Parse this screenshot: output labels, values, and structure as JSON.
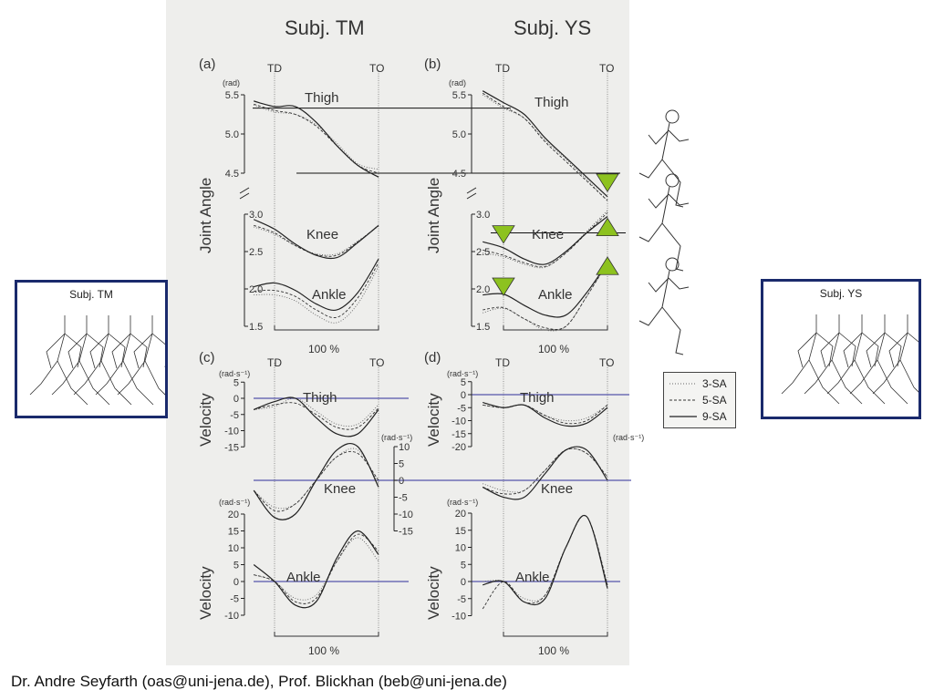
{
  "slide": {
    "footer": "Dr. Andre Seyfarth (oas@uni-jena.de), Prof. Blickhan (beb@uni-jena.de)"
  },
  "figure": {
    "subject_left": "Subj. TM",
    "subject_right": "Subj. YS",
    "panels": {
      "a": "(a)",
      "b": "(b)",
      "c": "(c)",
      "d": "(d)"
    },
    "td": "TD",
    "to": "TO",
    "stance_scale": "100 %",
    "angle_unit": "(rad)",
    "velocity_unit": "(rad·s⁻¹)",
    "angle_ylabel": "Joint Angle",
    "velocity_ylabel": "Velocity",
    "segments": {
      "thigh": "Thigh",
      "knee": "Knee",
      "ankle": "Ankle"
    }
  },
  "side_boxes": {
    "left_title": "Subj. TM",
    "right_title": "Subj. YS",
    "border_color": "#1a2a6c"
  },
  "legend": {
    "items": [
      {
        "label": "3-SA",
        "style": "dotted"
      },
      {
        "label": "5-SA",
        "style": "dashed"
      },
      {
        "label": "9-SA",
        "style": "solid"
      }
    ]
  },
  "colors": {
    "reference_line_angle": "#111111",
    "reference_line_velocity": "#5555aa",
    "marker": "#8dc21f"
  },
  "chart_data": {
    "type": "line",
    "x_unit": "% stance (TD = 0, TO = 100)",
    "x": [
      -20,
      0,
      20,
      40,
      60,
      80,
      100
    ],
    "series_names": [
      "3-SA",
      "5-SA",
      "9-SA"
    ],
    "subplots": [
      {
        "panel": "a",
        "subject": "Subj. TM",
        "quantity": "angle",
        "segment": "Thigh",
        "yticks": [
          "5.5",
          "5.0",
          "4.5"
        ],
        "series": [
          [
            5.37,
            5.28,
            5.25,
            5.12,
            4.88,
            4.62,
            4.55
          ],
          [
            5.38,
            5.3,
            5.25,
            5.1,
            4.85,
            4.6,
            4.5
          ],
          [
            5.42,
            5.35,
            5.35,
            5.15,
            4.85,
            4.6,
            4.45
          ]
        ]
      },
      {
        "panel": "a",
        "subject": "Subj. TM",
        "quantity": "angle",
        "segment": "Knee",
        "yticks": [
          "3.0",
          "2.5",
          "2.0",
          "1.5"
        ],
        "series": [
          [
            2.83,
            2.73,
            2.58,
            2.47,
            2.47,
            2.64,
            2.84
          ],
          [
            2.85,
            2.75,
            2.58,
            2.46,
            2.45,
            2.63,
            2.85
          ],
          [
            2.93,
            2.8,
            2.6,
            2.45,
            2.42,
            2.62,
            2.85
          ]
        ]
      },
      {
        "panel": "a",
        "subject": "Subj. TM",
        "quantity": "angle",
        "segment": "Ankle",
        "series": [
          [
            1.92,
            1.92,
            1.84,
            1.65,
            1.55,
            1.8,
            2.3
          ],
          [
            1.97,
            1.98,
            1.9,
            1.72,
            1.62,
            1.88,
            2.35
          ],
          [
            2.03,
            2.08,
            1.98,
            1.8,
            1.72,
            1.95,
            2.4
          ]
        ]
      },
      {
        "panel": "b",
        "subject": "Subj. YS",
        "quantity": "angle",
        "segment": "Thigh",
        "yticks": [
          "5.5",
          "5.0",
          "4.5"
        ],
        "series": [
          [
            5.5,
            5.33,
            5.2,
            4.92,
            4.68,
            4.42,
            4.15
          ],
          [
            5.52,
            5.35,
            5.2,
            4.9,
            4.65,
            4.4,
            4.15
          ],
          [
            5.55,
            5.4,
            5.25,
            4.95,
            4.7,
            4.45,
            4.2
          ]
        ]
      },
      {
        "panel": "b",
        "subject": "Subj. YS",
        "quantity": "angle",
        "segment": "Knee",
        "yticks": [
          "3.0",
          "2.5",
          "2.0",
          "1.5"
        ],
        "series": [
          [
            2.48,
            2.43,
            2.33,
            2.29,
            2.48,
            2.77,
            3.05
          ],
          [
            2.52,
            2.45,
            2.35,
            2.3,
            2.48,
            2.75,
            3.02
          ],
          [
            2.63,
            2.55,
            2.4,
            2.33,
            2.5,
            2.75,
            2.97
          ]
        ]
      },
      {
        "panel": "b",
        "subject": "Subj. YS",
        "quantity": "angle",
        "segment": "Ankle",
        "series": [
          [
            1.68,
            1.74,
            1.6,
            1.45,
            1.5,
            1.9,
            2.35
          ],
          [
            1.72,
            1.75,
            1.6,
            1.48,
            1.5,
            1.9,
            2.35
          ],
          [
            1.92,
            1.93,
            1.78,
            1.65,
            1.65,
            1.95,
            2.35
          ]
        ]
      },
      {
        "panel": "c",
        "subject": "Subj. TM",
        "quantity": "velocity",
        "segment": "Thigh",
        "yticks": [
          "5",
          "0",
          "-5",
          "-10",
          "-15"
        ],
        "series": [
          [
            -3.5,
            -2.5,
            0,
            -4,
            -8,
            -8,
            -2
          ],
          [
            -3.5,
            -2,
            -1.5,
            -5,
            -9,
            -9,
            -3
          ],
          [
            -3.5,
            -1,
            0,
            -6,
            -11,
            -11,
            -3.5
          ]
        ]
      },
      {
        "panel": "c",
        "subject": "Subj. TM",
        "quantity": "velocity",
        "segment": "Knee",
        "yticks": [
          "10",
          "5",
          "0",
          "-5",
          "-10",
          "-15"
        ],
        "series": [
          [
            -3,
            -8,
            -7,
            0,
            7,
            9,
            -1
          ],
          [
            -3,
            -9,
            -7,
            0,
            7,
            8,
            0
          ],
          [
            -3,
            -11,
            -10,
            0,
            9,
            10,
            -2
          ]
        ]
      },
      {
        "panel": "c",
        "subject": "Subj. TM",
        "quantity": "velocity",
        "segment": "Ankle",
        "yticks": [
          "20",
          "15",
          "10",
          "5",
          "0",
          "-5",
          "-10"
        ],
        "series": [
          [
            2,
            0,
            -5,
            -4,
            6,
            13,
            6
          ],
          [
            2,
            0,
            -6,
            -5,
            6,
            14,
            9
          ],
          [
            5,
            0,
            -7,
            -6,
            7,
            15,
            8
          ]
        ]
      },
      {
        "panel": "d",
        "subject": "Subj. YS",
        "quantity": "velocity",
        "segment": "Thigh",
        "yticks": [
          "5",
          "0",
          "-5",
          "-10",
          "-15",
          "-20"
        ],
        "series": [
          [
            -4,
            -5,
            -4,
            -8,
            -10,
            -9,
            -4
          ],
          [
            -4,
            -5,
            -4,
            -8,
            -11,
            -10,
            -4
          ],
          [
            -3,
            -5,
            -4,
            -9,
            -12,
            -11,
            -5
          ]
        ]
      },
      {
        "panel": "d",
        "subject": "Subj. YS",
        "quantity": "velocity",
        "segment": "Knee",
        "series": [
          [
            -1,
            -3,
            -3,
            3,
            9,
            8,
            1
          ],
          [
            -2,
            -4,
            -3,
            3,
            9,
            8,
            1
          ],
          [
            -2,
            -5,
            -5,
            2,
            9,
            9,
            0
          ]
        ]
      },
      {
        "panel": "d",
        "subject": "Subj. YS",
        "quantity": "velocity",
        "segment": "Ankle",
        "yticks": [
          "20",
          "15",
          "10",
          "5",
          "0",
          "-5",
          "-10"
        ],
        "series": [
          [
            0,
            0,
            -5,
            -4,
            10,
            19,
            -1
          ],
          [
            -8,
            0,
            -6,
            -4,
            10,
            19,
            -1
          ],
          [
            -1,
            0,
            -6,
            -5,
            10,
            19,
            -2
          ]
        ]
      }
    ],
    "markers": [
      {
        "panel": "b",
        "x": 0,
        "y": 2.7,
        "direction": "down"
      },
      {
        "panel": "b",
        "x": 0,
        "y": 2.0,
        "direction": "down"
      },
      {
        "panel": "b",
        "x": 100,
        "y": 4.35,
        "direction": "down"
      },
      {
        "panel": "b",
        "x": 100,
        "y": 2.8,
        "direction": "up"
      },
      {
        "panel": "b",
        "x": 100,
        "y": 2.28,
        "direction": "up"
      }
    ],
    "reference_lines": [
      {
        "quantity": "angle",
        "y": 5.33
      },
      {
        "quantity": "angle",
        "y": 4.5
      },
      {
        "quantity": "angle",
        "panel": "b",
        "y": 2.75
      },
      {
        "quantity": "velocity",
        "y": 0
      }
    ]
  }
}
